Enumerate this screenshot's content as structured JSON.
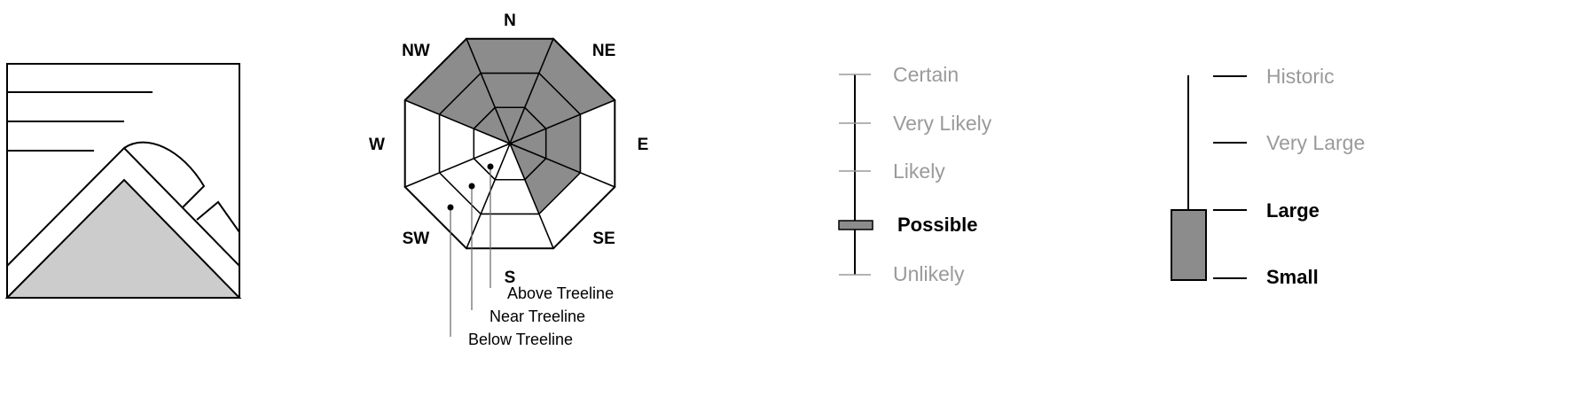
{
  "colors": {
    "stroke": "#000000",
    "fill_gray": "#8c8c8c",
    "terrain_gray": "#cccccc",
    "muted_text": "#9a9a9a",
    "leader_gray": "#666666"
  },
  "terrain_icon": {
    "icon": "avalanche-problem-icon"
  },
  "aspect_rose": {
    "directions": {
      "n": "N",
      "ne": "NE",
      "e": "E",
      "se": "SE",
      "s": "S",
      "sw": "SW",
      "w": "W",
      "nw": "NW"
    },
    "elevation_bands": {
      "above": "Above Treeline",
      "near": "Near Treeline",
      "below": "Below Treeline"
    },
    "shaded_sectors": {
      "outer": [
        "N",
        "NW",
        "NE"
      ],
      "middle": [
        "N",
        "NW",
        "NE",
        "E",
        "SE"
      ],
      "inner": [
        "N",
        "NW",
        "NE",
        "E",
        "SE"
      ]
    }
  },
  "likelihood": {
    "levels": [
      "Certain",
      "Very Likely",
      "Likely",
      "Possible",
      "Unlikely"
    ],
    "selected": "Possible"
  },
  "size": {
    "levels": [
      "Historic",
      "Very Large",
      "Large",
      "Small"
    ],
    "selected_range": [
      "Small",
      "Large"
    ]
  }
}
